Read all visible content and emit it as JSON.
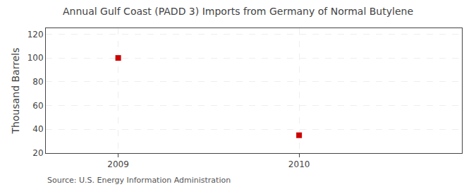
{
  "chart_data": {
    "type": "scatter",
    "title": "Annual Gulf Coast (PADD 3) Imports from Germany of Normal Butylene",
    "ylabel": "Thousand Barrels",
    "annotations": [
      "Source: U.S. Energy Information Administration"
    ],
    "x": [
      2009,
      2010
    ],
    "values": [
      100,
      35
    ],
    "color": "#cc0000",
    "marker": "square",
    "xlim": [
      2008.6,
      2010.9
    ],
    "xticks": [
      2009,
      2010
    ],
    "ylim": [
      20,
      125
    ],
    "yticks": [
      20,
      40,
      60,
      80,
      100,
      120
    ],
    "grid": true
  }
}
